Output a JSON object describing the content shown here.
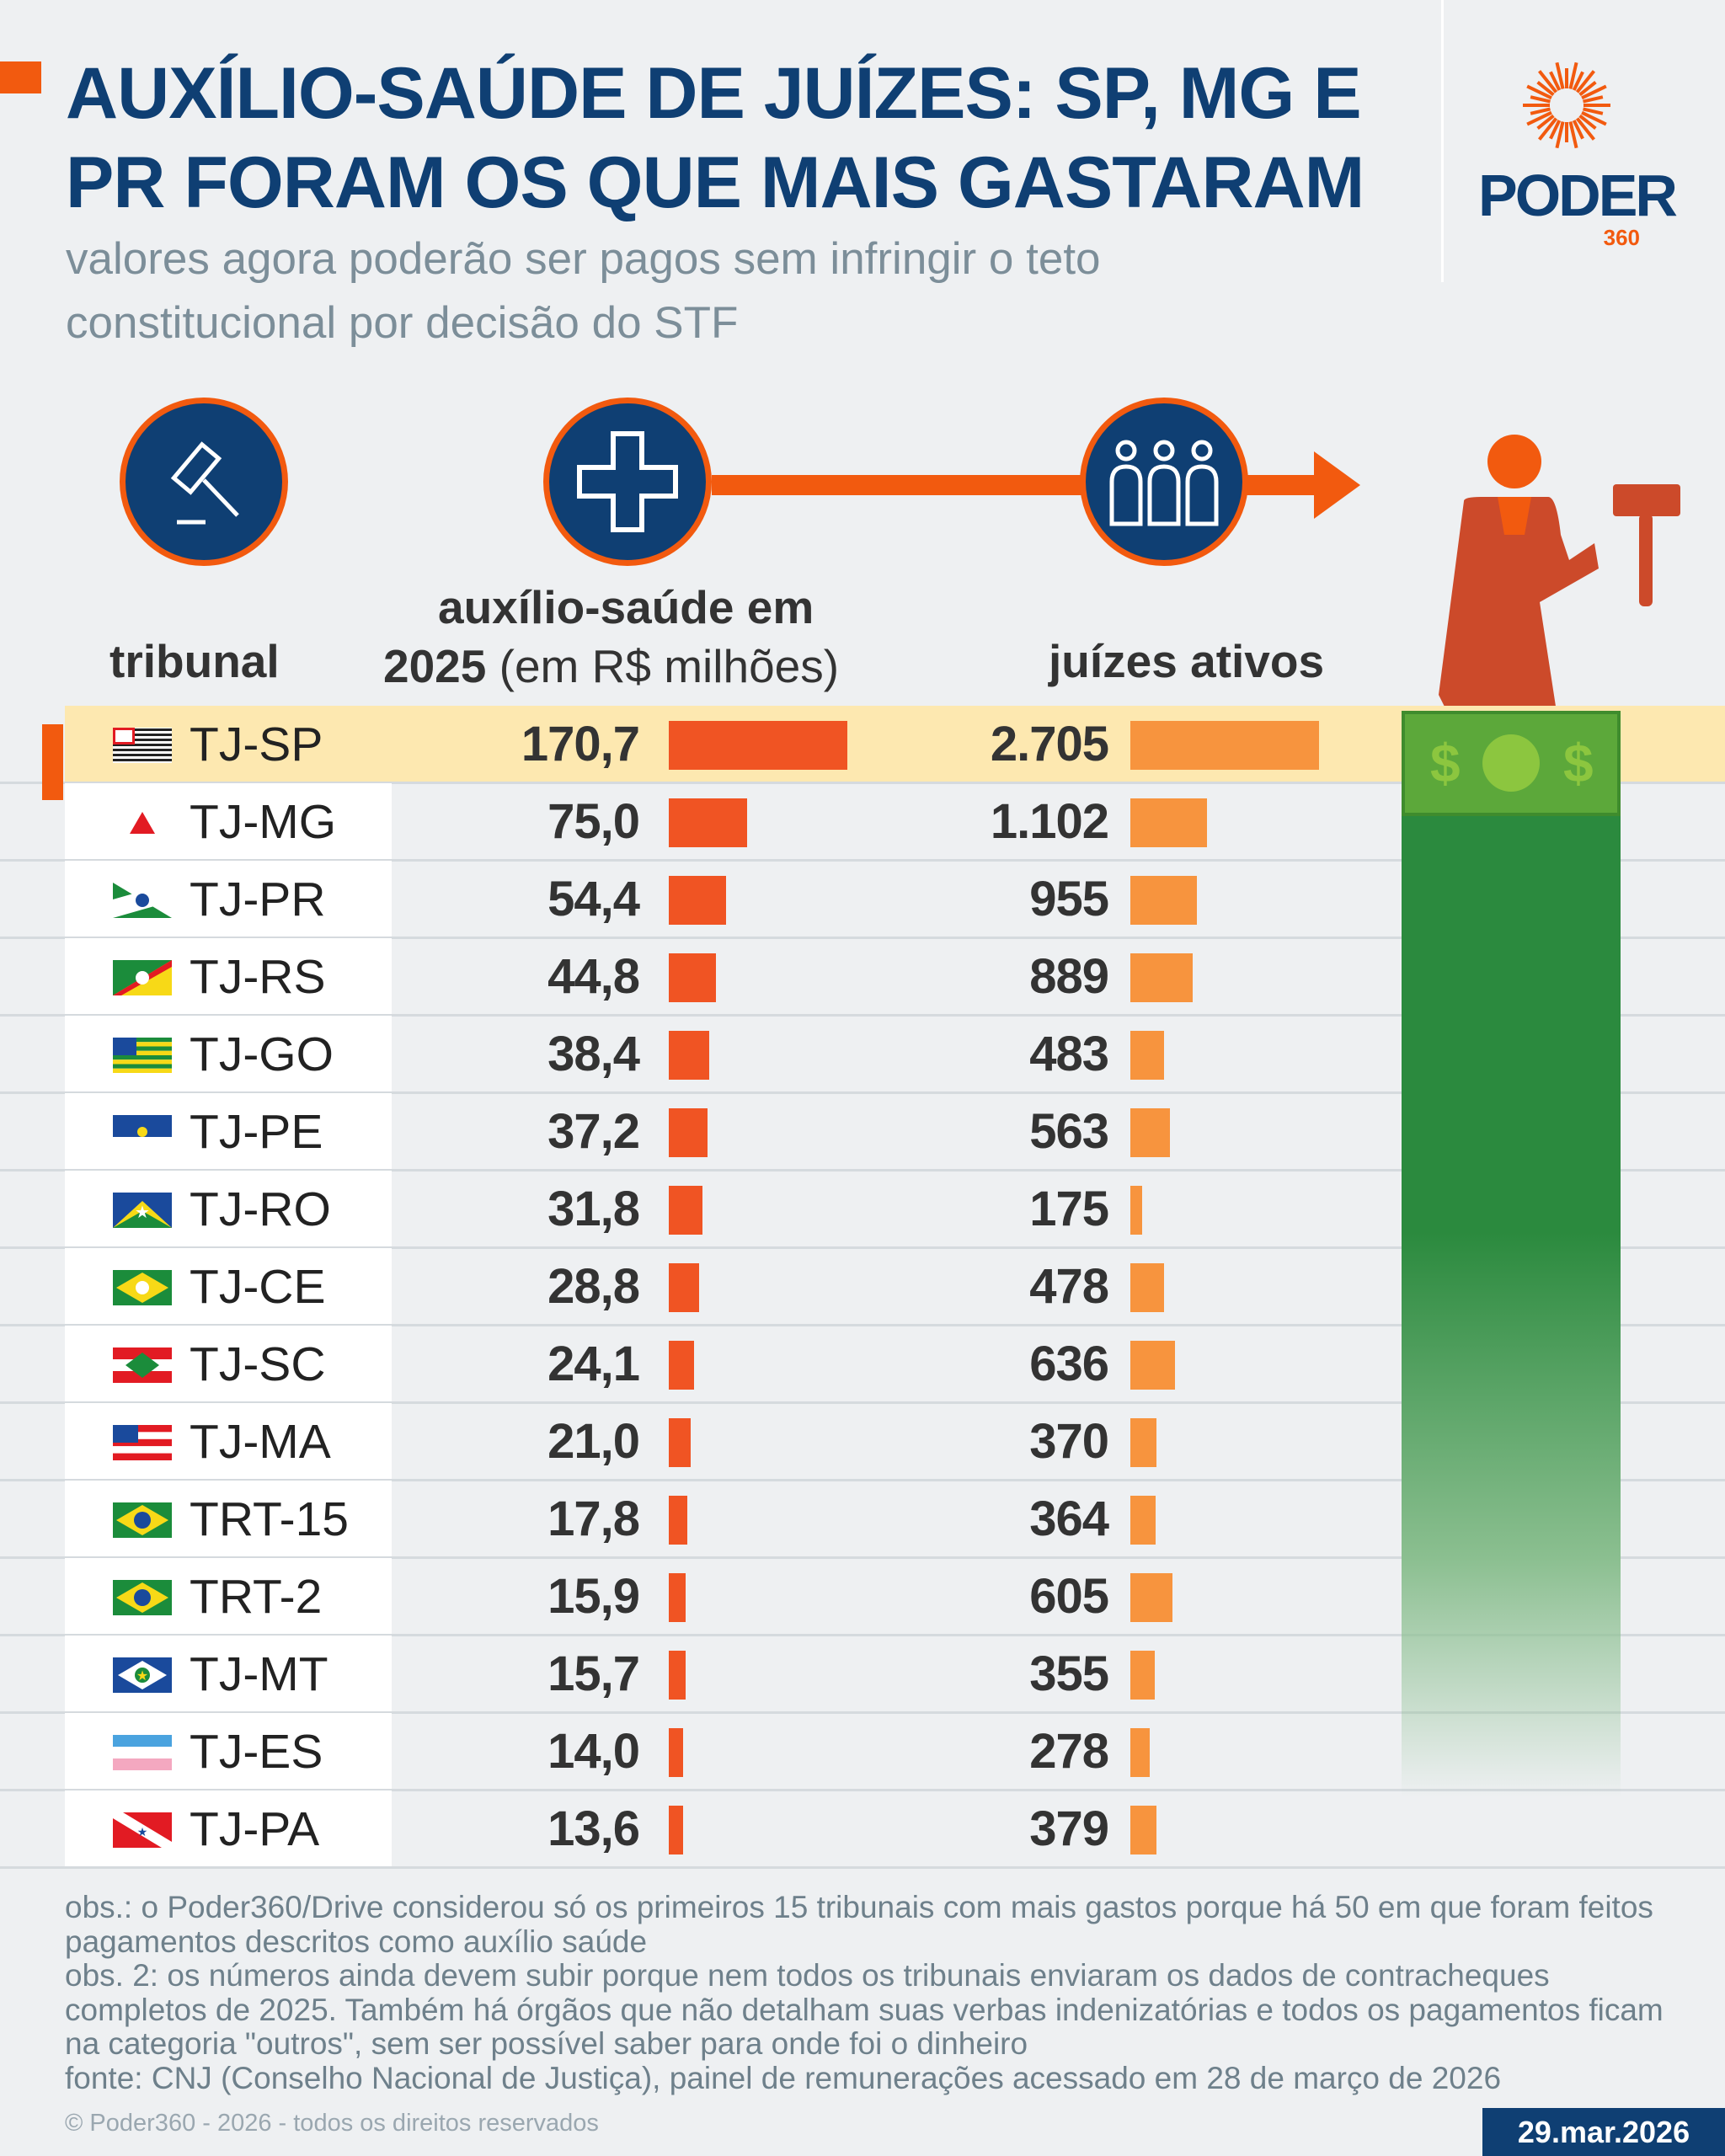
{
  "header": {
    "title": "AUXÍLIO-SAÚDE DE JUÍZES: SP, MG E PR FORAM OS QUE MAIS GASTARAM",
    "subtitle": "valores agora poderão ser pagos sem infringir o teto constitucional por decisão do STF",
    "logo": {
      "name": "PODER",
      "suffix": "360"
    }
  },
  "colors": {
    "title": "#0f3f73",
    "accent": "#f25a0f",
    "spend_bar": "#f05423",
    "judges_bar": "#f7943e",
    "highlight": "#fde8b0",
    "money": "#2b8a3e"
  },
  "icons": [
    "gavel-icon",
    "medical-cross-icon",
    "people-icon",
    "judge-figure-icon",
    "money-bill-icon"
  ],
  "chart_data": {
    "type": "table",
    "columns": {
      "tribunal": "tribunal",
      "spend_line1": "auxílio-saúde em",
      "spend_line2_bold": "2025",
      "spend_line2": "(em R$ milhões)",
      "judges": "juízes ativos"
    },
    "highlighted": "TJ-SP",
    "rows": [
      {
        "tribunal": "TJ-SP",
        "spend": 170.7,
        "spend_label": "170,7",
        "judges": 2705,
        "judges_label": "2.705"
      },
      {
        "tribunal": "TJ-MG",
        "spend": 75.0,
        "spend_label": "75,0",
        "judges": 1102,
        "judges_label": "1.102"
      },
      {
        "tribunal": "TJ-PR",
        "spend": 54.4,
        "spend_label": "54,4",
        "judges": 955,
        "judges_label": "955"
      },
      {
        "tribunal": "TJ-RS",
        "spend": 44.8,
        "spend_label": "44,8",
        "judges": 889,
        "judges_label": "889"
      },
      {
        "tribunal": "TJ-GO",
        "spend": 38.4,
        "spend_label": "38,4",
        "judges": 483,
        "judges_label": "483"
      },
      {
        "tribunal": "TJ-PE",
        "spend": 37.2,
        "spend_label": "37,2",
        "judges": 563,
        "judges_label": "563"
      },
      {
        "tribunal": "TJ-RO",
        "spend": 31.8,
        "spend_label": "31,8",
        "judges": 175,
        "judges_label": "175"
      },
      {
        "tribunal": "TJ-CE",
        "spend": 28.8,
        "spend_label": "28,8",
        "judges": 478,
        "judges_label": "478"
      },
      {
        "tribunal": "TJ-SC",
        "spend": 24.1,
        "spend_label": "24,1",
        "judges": 636,
        "judges_label": "636"
      },
      {
        "tribunal": "TJ-MA",
        "spend": 21.0,
        "spend_label": "21,0",
        "judges": 370,
        "judges_label": "370"
      },
      {
        "tribunal": "TRT-15",
        "spend": 17.8,
        "spend_label": "17,8",
        "judges": 364,
        "judges_label": "364"
      },
      {
        "tribunal": "TRT-2",
        "spend": 15.9,
        "spend_label": "15,9",
        "judges": 605,
        "judges_label": "605"
      },
      {
        "tribunal": "TJ-MT",
        "spend": 15.7,
        "spend_label": "15,7",
        "judges": 355,
        "judges_label": "355"
      },
      {
        "tribunal": "TJ-ES",
        "spend": 14.0,
        "spend_label": "14,0",
        "judges": 278,
        "judges_label": "278"
      },
      {
        "tribunal": "TJ-PA",
        "spend": 13.6,
        "spend_label": "13,6",
        "judges": 379,
        "judges_label": "379"
      }
    ]
  },
  "footer": {
    "notes": [
      "obs.: o Poder360/Drive considerou só os primeiros 15 tribunais com mais gastos porque há 50 em que foram feitos pagamentos descritos como auxílio saúde",
      "obs. 2: os números ainda devem subir porque nem todos os tribunais enviaram os dados de contracheques completos de 2025. Também há órgãos que não detalham suas verbas indenizatórias e todos os pagamentos ficam na categoria \"outros\", sem ser possível saber para onde foi o dinheiro",
      "fonte: CNJ (Conselho Nacional de Justiça), painel de remunerações acessado em 28 de março de 2026"
    ],
    "copyright": "© Poder360 - 2026 - todos os direitos reservados",
    "date": "29.mar.2026"
  }
}
